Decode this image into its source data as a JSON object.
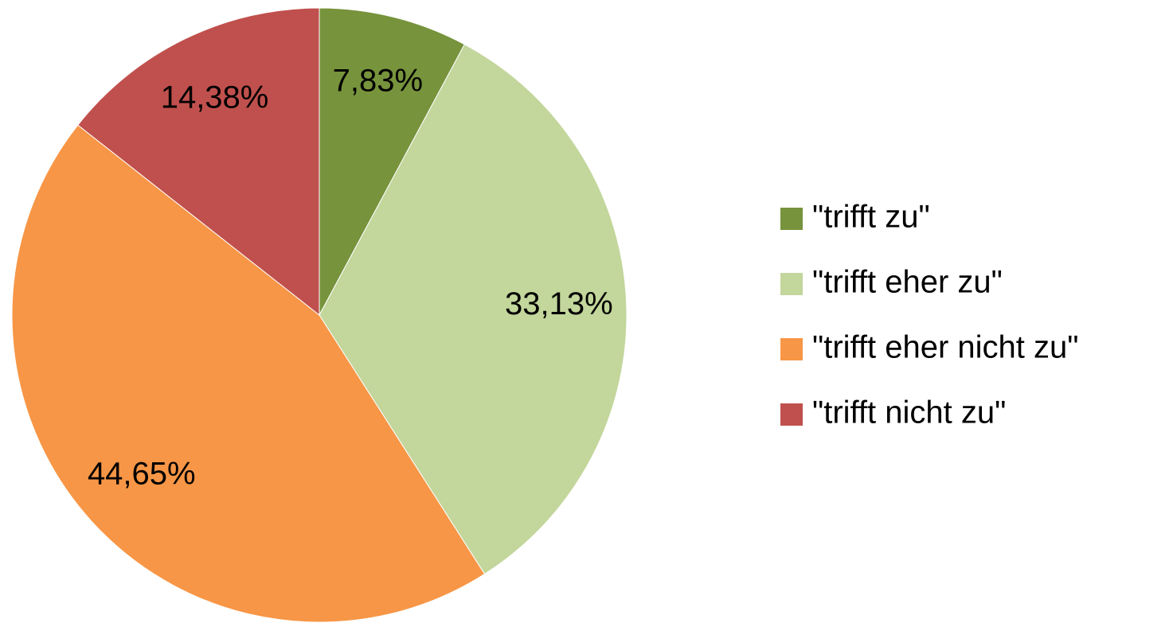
{
  "chart_data": {
    "type": "pie",
    "categories": [
      "\"trifft zu\"",
      "\"trifft eher zu\"",
      "\"trifft eher nicht zu\"",
      "\"trifft nicht zu\""
    ],
    "values": [
      7.83,
      33.13,
      44.65,
      14.38
    ],
    "value_labels": [
      "7,83%",
      "33,13%",
      "44,65%",
      "14,38%"
    ],
    "colors": [
      "#77933c",
      "#c3d69b",
      "#f79646",
      "#c0504d"
    ],
    "legend": "right"
  }
}
